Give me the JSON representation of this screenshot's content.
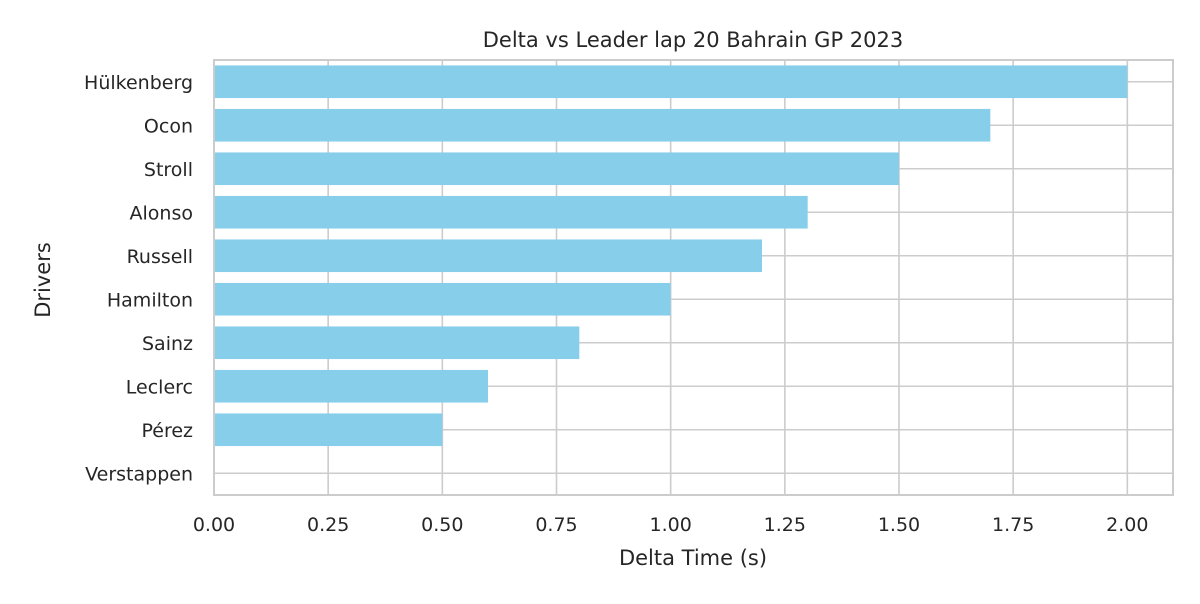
{
  "chart_data": {
    "type": "bar",
    "orientation": "horizontal",
    "title": "Delta vs Leader lap 20 Bahrain GP 2023",
    "xlabel": "Delta Time (s)",
    "ylabel": "Drivers",
    "categories": [
      "Verstappen",
      "Pérez",
      "Leclerc",
      "Sainz",
      "Hamilton",
      "Russell",
      "Alonso",
      "Stroll",
      "Ocon",
      "Hülkenberg"
    ],
    "values": [
      0.0,
      0.5,
      0.6,
      0.8,
      1.0,
      1.2,
      1.3,
      1.5,
      1.7,
      2.0
    ],
    "xlim": [
      0.0,
      2.1
    ],
    "xticks": [
      "0.00",
      "0.25",
      "0.50",
      "0.75",
      "1.00",
      "1.25",
      "1.50",
      "1.75",
      "2.00"
    ],
    "grid": true,
    "bar_color": "#87CEEB",
    "grid_color": "#CCCCCC",
    "spine_color": "#CCCCCC"
  }
}
